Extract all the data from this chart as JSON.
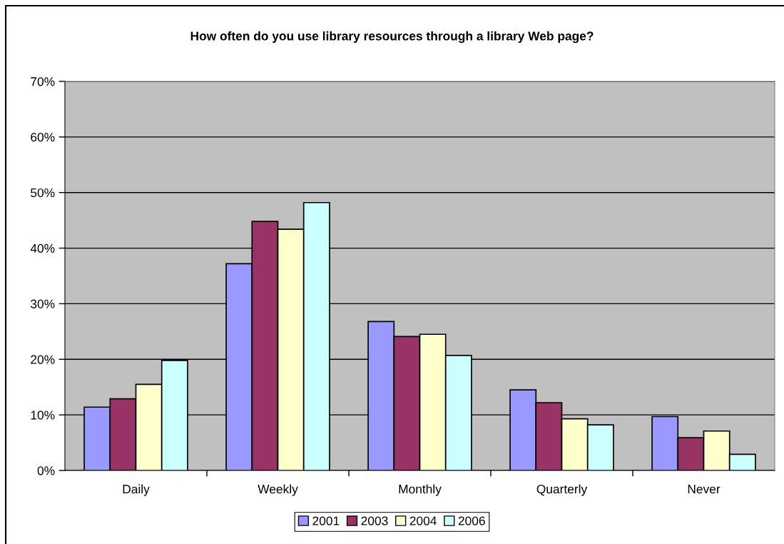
{
  "chart_data": {
    "type": "bar",
    "title": "How often do you use library resources through a library Web page?",
    "categories": [
      "Daily",
      "Weekly",
      "Monthly",
      "Quarterly",
      "Never"
    ],
    "series": [
      {
        "name": "2001",
        "color": "#9999ff",
        "values": [
          11.4,
          37.2,
          26.8,
          14.5,
          9.7
        ]
      },
      {
        "name": "2003",
        "color": "#993366",
        "values": [
          12.9,
          44.8,
          24.1,
          12.2,
          5.9
        ]
      },
      {
        "name": "2004",
        "color": "#ffffcc",
        "values": [
          15.5,
          43.4,
          24.5,
          9.3,
          7.1
        ]
      },
      {
        "name": "2006",
        "color": "#ccffff",
        "values": [
          19.8,
          48.2,
          20.7,
          8.2,
          2.9
        ]
      }
    ],
    "ylim": [
      0,
      70
    ],
    "yticks": [
      {
        "value": 0,
        "label": "0%"
      },
      {
        "value": 10,
        "label": "10%"
      },
      {
        "value": 20,
        "label": "20%"
      },
      {
        "value": 30,
        "label": "30%"
      },
      {
        "value": 40,
        "label": "40%"
      },
      {
        "value": 50,
        "label": "50%"
      },
      {
        "value": 60,
        "label": "60%"
      },
      {
        "value": 70,
        "label": "70%"
      }
    ],
    "grid": "y",
    "legend": "bottom"
  }
}
